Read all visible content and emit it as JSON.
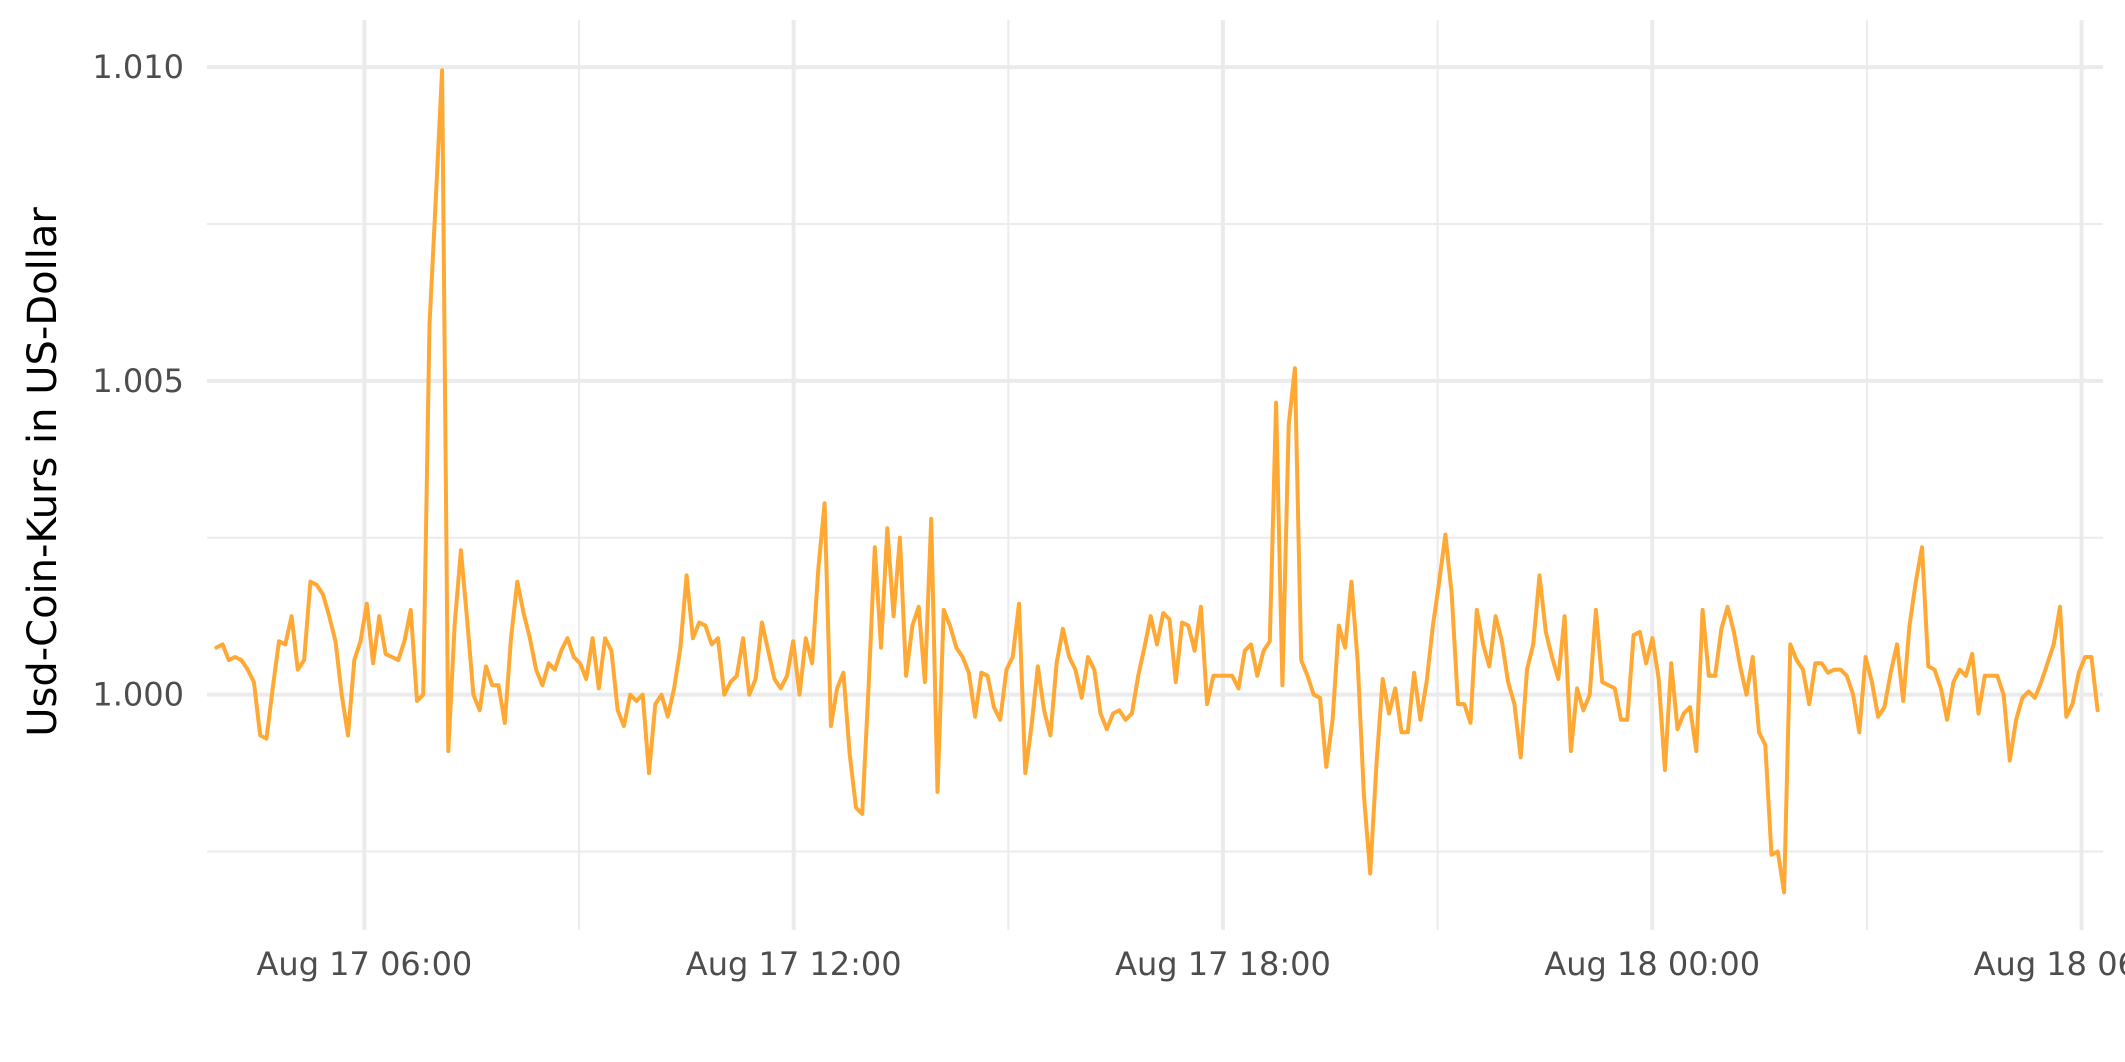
{
  "chart_data": {
    "type": "line",
    "title": "",
    "xlabel": "",
    "ylabel": "Usd-Coin-Kurs in US-Dollar",
    "x_ticks": [
      {
        "label": "Aug 17 06:00",
        "hour": 6
      },
      {
        "label": "Aug 17 12:00",
        "hour": 12
      },
      {
        "label": "Aug 17 18:00",
        "hour": 18
      },
      {
        "label": "Aug 18 00:00",
        "hour": 24
      },
      {
        "label": "Aug 18 06:00",
        "hour": 30
      }
    ],
    "y_ticks": [
      {
        "label": "1.000",
        "value": 1.0
      },
      {
        "label": "1.005",
        "value": 1.005
      },
      {
        "label": "1.010",
        "value": 1.01
      }
    ],
    "xlim_hours": [
      3.8,
      30.3
    ],
    "ylim": [
      0.99625,
      1.01075
    ],
    "grid": true,
    "series": [
      {
        "color": "#FFA833",
        "start_hour": 3.93,
        "step_hours": 0.08765,
        "values": [
          1.00075,
          1.0008,
          1.00055,
          1.0006,
          1.00055,
          1.0004,
          1.0002,
          0.99935,
          0.9993,
          1.0001,
          1.00085,
          1.0008,
          1.00125,
          1.0004,
          1.00055,
          1.0018,
          1.00175,
          1.0016,
          1.00125,
          1.00085,
          1.0,
          0.99935,
          1.00055,
          1.00085,
          1.00145,
          1.0005,
          1.00125,
          1.00065,
          1.0006,
          1.00055,
          1.00085,
          1.00135,
          0.9999,
          1.0,
          1.0059,
          1.0079,
          1.00995,
          0.9991,
          1.0011,
          1.0023,
          1.0012,
          1.0,
          0.99975,
          1.00045,
          1.00015,
          1.00015,
          0.99955,
          1.0009,
          1.0018,
          1.0013,
          1.0009,
          1.0004,
          1.00015,
          1.0005,
          1.0004,
          1.0007,
          1.0009,
          1.0006,
          1.0005,
          1.00025,
          1.0009,
          1.0001,
          1.0009,
          1.0007,
          0.99975,
          0.9995,
          1.0,
          0.9999,
          1.0,
          0.99875,
          0.99985,
          1.0,
          0.99965,
          1.0001,
          1.00075,
          1.0019,
          1.0009,
          1.00115,
          1.0011,
          1.0008,
          1.0009,
          1.0,
          1.0002,
          1.0003,
          1.0009,
          1.0,
          1.00025,
          1.00115,
          1.0007,
          1.00025,
          1.0001,
          1.0003,
          1.00085,
          1.0,
          1.0009,
          1.0005,
          1.002,
          1.00305,
          0.9995,
          1.0001,
          1.00035,
          0.99905,
          0.9982,
          0.9981,
          1.0001,
          1.00235,
          1.00075,
          1.00265,
          1.00125,
          1.0025,
          1.0003,
          1.0011,
          1.0014,
          1.0002,
          1.0028,
          0.99845,
          1.00135,
          1.0011,
          1.00075,
          1.0006,
          1.00035,
          0.99965,
          1.00035,
          1.0003,
          0.9998,
          0.9996,
          1.0004,
          1.0006,
          1.00145,
          0.99875,
          0.9995,
          1.00045,
          0.99975,
          0.99935,
          1.0005,
          1.00105,
          1.0006,
          1.0004,
          0.99995,
          1.0006,
          1.0004,
          0.9997,
          0.99945,
          0.9997,
          0.99975,
          0.9996,
          0.9997,
          1.0003,
          1.00075,
          1.00125,
          1.0008,
          1.0013,
          1.0012,
          1.0002,
          1.00115,
          1.0011,
          1.0007,
          1.0014,
          0.99985,
          1.0003,
          1.0003,
          1.0003,
          1.0003,
          1.0001,
          1.0007,
          1.0008,
          1.0003,
          1.0007,
          1.00085,
          1.00465,
          1.00015,
          1.0043,
          1.0052,
          1.00055,
          1.0003,
          1.0,
          0.99995,
          0.99885,
          0.9996,
          1.0011,
          1.00075,
          1.0018,
          1.00055,
          0.9984,
          0.99715,
          0.9989,
          1.00025,
          0.9997,
          1.0001,
          0.9994,
          0.9994,
          1.00035,
          0.9996,
          1.0002,
          1.0011,
          1.0018,
          1.00255,
          1.0016,
          0.99985,
          0.99985,
          0.99955,
          1.00135,
          1.0008,
          1.00045,
          1.00125,
          1.00085,
          1.0002,
          0.99985,
          0.999,
          1.0004,
          1.0008,
          1.0019,
          1.001,
          1.0006,
          1.00025,
          1.00125,
          0.9991,
          1.0001,
          0.99975,
          1.0,
          1.00135,
          1.0002,
          1.00015,
          1.0001,
          0.9996,
          0.9996,
          1.00095,
          1.001,
          1.0005,
          1.0009,
          1.00025,
          0.9988,
          1.0005,
          0.99945,
          0.9997,
          0.9998,
          0.9991,
          1.00135,
          1.0003,
          1.0003,
          1.00105,
          1.0014,
          1.001,
          1.00045,
          1.0,
          1.0006,
          0.9994,
          0.9992,
          0.99745,
          0.9975,
          0.99685,
          1.0008,
          1.00055,
          1.0004,
          0.99985,
          1.0005,
          1.0005,
          1.00035,
          1.0004,
          1.0004,
          1.0003,
          1.0,
          0.9994,
          1.0006,
          1.0002,
          0.99965,
          0.9998,
          1.00035,
          1.0008,
          0.9999,
          1.0011,
          1.0018,
          1.00235,
          1.00045,
          1.0004,
          1.0001,
          0.9996,
          1.0002,
          1.0004,
          1.0003,
          1.00065,
          0.9997,
          1.0003,
          1.0003,
          1.0003,
          1.0,
          0.99895,
          0.9996,
          0.99995,
          1.00005,
          0.99995,
          1.0002,
          1.0005,
          1.0008,
          1.0014,
          0.99965,
          0.99985,
          1.00035,
          1.0006,
          1.0006,
          0.99975
        ]
      }
    ]
  }
}
